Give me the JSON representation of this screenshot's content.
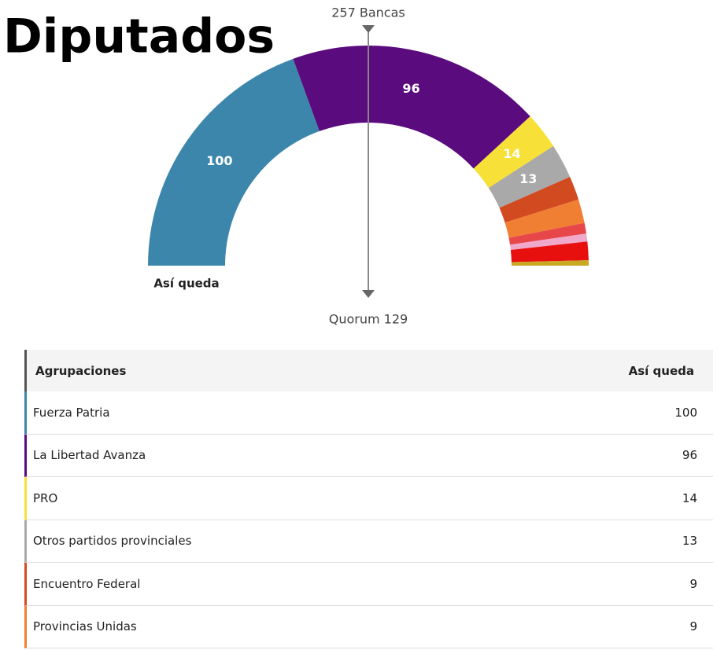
{
  "chart_data": {
    "type": "semicircle",
    "title": "Diputados",
    "total_label": "257 Bancas",
    "quorum_label": "Quorum 129",
    "center_label": "Así queda",
    "categories": [
      "Fuerza Patria",
      "La Libertad Avanza",
      "PRO",
      "Otros partidos provinciales",
      "Encuentro Federal",
      "Provincias Unidas",
      null,
      null,
      null,
      null
    ],
    "values": [
      100,
      96,
      14,
      13,
      9,
      9,
      4,
      3,
      7,
      2
    ],
    "colors": [
      "#3d86ab",
      "#5a0b7d",
      "#f7e037",
      "#a9a9a9",
      "#d24b20",
      "#f07e33",
      "#e8474a",
      "#f0a8cb",
      "#e8100f",
      "#c9a822"
    ],
    "labeled": [
      true,
      true,
      true,
      true,
      false,
      false,
      false,
      false,
      false,
      false
    ],
    "table_headers": [
      "Agrupaciones",
      "Así queda"
    ]
  }
}
